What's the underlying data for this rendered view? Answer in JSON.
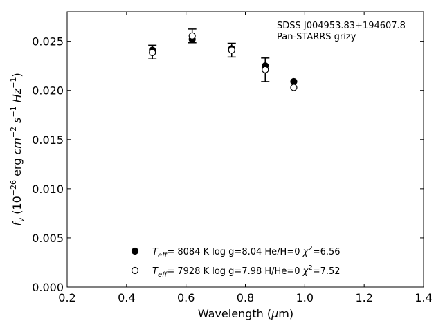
{
  "chart_data": {
    "type": "scatter",
    "xlabel": "Wavelength (μm)",
    "ylabel": "f_ν (10^-26 erg cm^-2 s^-1 Hz^-1)",
    "xlim": [
      0.2,
      1.4
    ],
    "ylim": [
      0.0,
      0.028
    ],
    "x_ticks": [
      "0.2",
      "0.4",
      "0.6",
      "0.8",
      "1.0",
      "1.2",
      "1.4"
    ],
    "y_ticks": [
      "0.000",
      "0.005",
      "0.010",
      "0.015",
      "0.020",
      "0.025"
    ],
    "grid": false,
    "annotation": [
      "SDSS J004953.83+194607.8",
      "Pan-STARRS grizy"
    ],
    "observed": {
      "x": [
        0.487,
        0.621,
        0.754,
        0.867,
        0.963
      ],
      "y": [
        0.0239,
        0.02555,
        0.0241,
        0.0221,
        0.0203
      ],
      "yerr": [
        0.0007,
        0.0007,
        0.0007,
        0.0012,
        0.0
      ]
    },
    "series": [
      {
        "marker": "filled-circle",
        "legend": "T_eff= 8084 K log g=8.04 He/H=0 χ²=6.56",
        "x": [
          0.487,
          0.621,
          0.754,
          0.867,
          0.963
        ],
        "y": [
          0.0241,
          0.0252,
          0.02425,
          0.0225,
          0.0209
        ]
      },
      {
        "marker": "open-circle",
        "legend": "T_eff= 7928 K log g=7.98 H/He=0 χ²=7.52",
        "x": [
          0.487,
          0.621,
          0.754,
          0.867,
          0.963
        ],
        "y": [
          0.02385,
          0.02555,
          0.0241,
          0.0221,
          0.0203
        ]
      }
    ],
    "legend_position": "lower-center"
  }
}
